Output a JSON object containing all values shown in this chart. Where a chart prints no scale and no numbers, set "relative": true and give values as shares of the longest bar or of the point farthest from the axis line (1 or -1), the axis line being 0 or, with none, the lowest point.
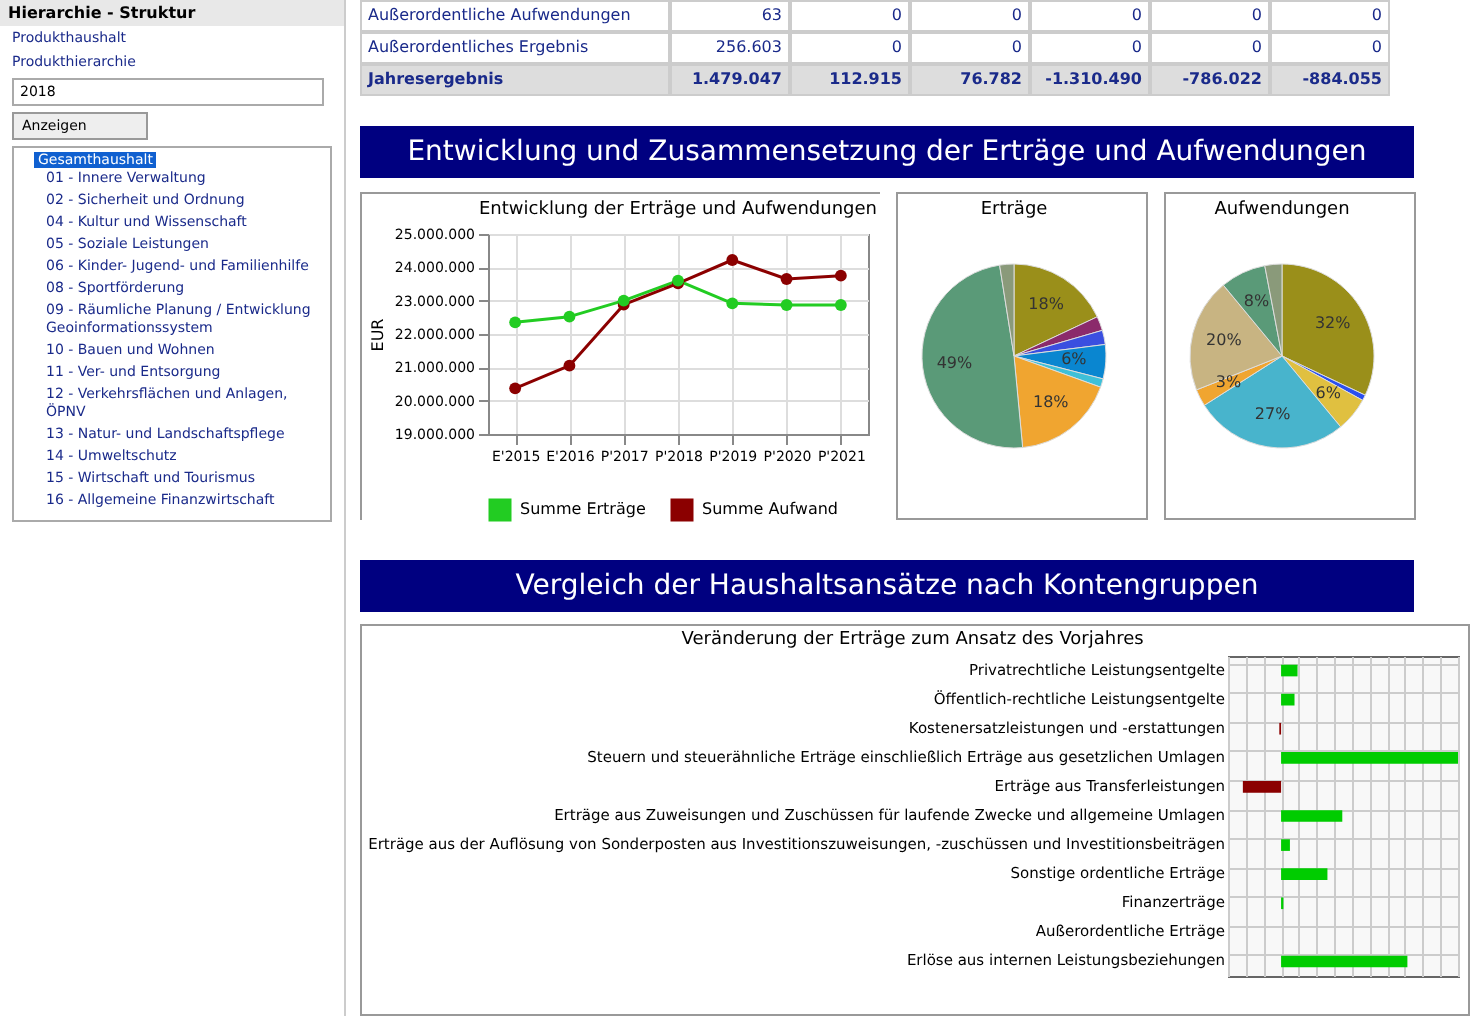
{
  "chart_data": [
    {
      "type": "other",
      "title": "Hierarchie - Struktur",
      "annotations": [
        "Produkthaushalt",
        "Produkthierarchie",
        "2018",
        "Anzeigen",
        "Gesamthaushalt",
        "01 - Innere Verwaltung",
        "02 - Sicherheit und Ordnung",
        "04 - Kultur und Wissenschaft",
        "05 - Soziale Leistungen",
        "06 - Kinder- Jugend- und Familienhilfe",
        "08 - Sportförderung",
        "09 - Räumliche Planung / Entwicklung Geoinformationssystem",
        "10 - Bauen und Wohnen",
        "11 - Ver- und Entsorgung",
        "12 - Verkehrsflächen und Anlagen, ÖPNV",
        "13 - Natur- und Landschaftspflege",
        "14 - Umweltschutz",
        "15 - Wirtschaft und Tourismus",
        "16 - Allgemeine Finanzwirtschaft"
      ]
    },
    {
      "type": "other",
      "annotations": [
        "Außerordentliche Aufwendungen",
        "63",
        "0",
        "0",
        "0",
        "0",
        "0",
        "Außerordentliches Ergebnis",
        "256.603",
        "0",
        "0",
        "0",
        "0",
        "0",
        "Jahresergebnis",
        "1.479.047",
        "112.915",
        "76.782",
        "-1.310.490",
        "-786.022",
        "-884.055"
      ]
    },
    {
      "type": "other",
      "title": "Entwicklung und Zusammensetzung der Erträge und Aufwendungen"
    },
    {
      "type": "line",
      "title": "Entwicklung der Erträge und Aufwendungen",
      "ylabel": "EUR",
      "categories": [
        "E'2015",
        "E'2016",
        "P'2017",
        "P'2018",
        "P'2019",
        "P'2020",
        "P'2021"
      ],
      "series": [
        {
          "name": "Summe Erträge",
          "color": "#22cc22",
          "values": [
            22350000,
            22520000,
            23000000,
            23600000,
            22920000,
            22870000,
            22870000
          ]
        },
        {
          "name": "Summe Aufwand",
          "color": "#8b0000",
          "values": [
            20370000,
            21050000,
            22880000,
            23520000,
            24220000,
            23650000,
            23750000
          ]
        }
      ],
      "ylim": [
        19000000,
        25000000
      ],
      "yticks": [
        {
          "value": 19000000,
          "label": "19.000.000"
        },
        {
          "value": 20000000,
          "label": "20.000.000"
        },
        {
          "value": 21000000,
          "label": "21.000.000"
        },
        {
          "value": 22000000,
          "label": "22.000.000"
        },
        {
          "value": 23000000,
          "label": "23.000.000"
        },
        {
          "value": 24000000,
          "label": "24.000.000"
        },
        {
          "value": 25000000,
          "label": "25.000.000"
        }
      ],
      "grid": true,
      "legend": "bottom",
      "marker": "circle"
    },
    {
      "type": "pie",
      "title": "Erträge",
      "categories": [
        null,
        null,
        null,
        null,
        null,
        null,
        null,
        null
      ],
      "values": [
        18,
        2.5,
        2.5,
        6,
        1.5,
        18,
        49,
        2.5
      ],
      "colors": [
        "#9a8f1a",
        "#8b2a6b",
        "#3a4fe0",
        "#0a86d0",
        "#3ec0d8",
        "#f0a530",
        "#5a9a78",
        "#8a9a7a"
      ],
      "value_labels": [
        "18%",
        null,
        null,
        "6%",
        null,
        "18%",
        "49%",
        null
      ]
    },
    {
      "type": "pie",
      "title": "Aufwendungen",
      "categories": [
        null,
        null,
        null,
        null,
        null,
        null,
        null,
        null
      ],
      "values": [
        32,
        1,
        6,
        27,
        3,
        20,
        8,
        3
      ],
      "colors": [
        "#9a8f1a",
        "#2a4ff0",
        "#e0c040",
        "#48b4cc",
        "#f0a530",
        "#c8b482",
        "#5a9a78",
        "#8a9a7a"
      ],
      "value_labels": [
        "32%",
        null,
        "6%",
        "27%",
        "3%",
        "20%",
        "8%",
        null
      ]
    },
    {
      "type": "other",
      "title": "Vergleich der Haushaltsansätze nach Kontengruppen"
    },
    {
      "type": "bar",
      "orientation": "horizontal",
      "relative": true,
      "title": "Veränderung der Erträge zum Ansatz des Vorjahres",
      "categories": [
        "Privatrechtliche Leistungsentgelte",
        "Öffentlich-rechtliche Leistungsentgelte",
        "Kostenersatzleistungen und -erstattungen",
        "Steuern und steuerähnliche Erträge einschließlich Erträge aus gesetzlichen Umlagen",
        "Erträge aus Transferleistungen",
        "Erträge aus Zuweisungen und Zuschüssen für laufende Zwecke und allgemeine Umlagen",
        "Erträge aus der Auflösung von Sonderposten aus Investitionszuweisungen, -zuschüssen und Investitionsbeiträgen",
        "Sonstige ordentliche Erträge",
        "Finanzerträge",
        "Außerordentliche Erträge",
        "Erlöse aus internen Leistungsbeziehungen"
      ],
      "values": [
        0.093,
        0.076,
        -0.01,
        1,
        -0.216,
        0.346,
        0.05,
        0.262,
        0.013,
        0,
        0.714
      ],
      "colors": [
        "#00cc00",
        "#00cc00",
        "#8b0000",
        "#00cc00",
        "#8b0000",
        "#00cc00",
        "#00cc00",
        "#00cc00",
        "#00cc00",
        "#00cc00",
        "#00cc00"
      ],
      "grid": true
    }
  ]
}
